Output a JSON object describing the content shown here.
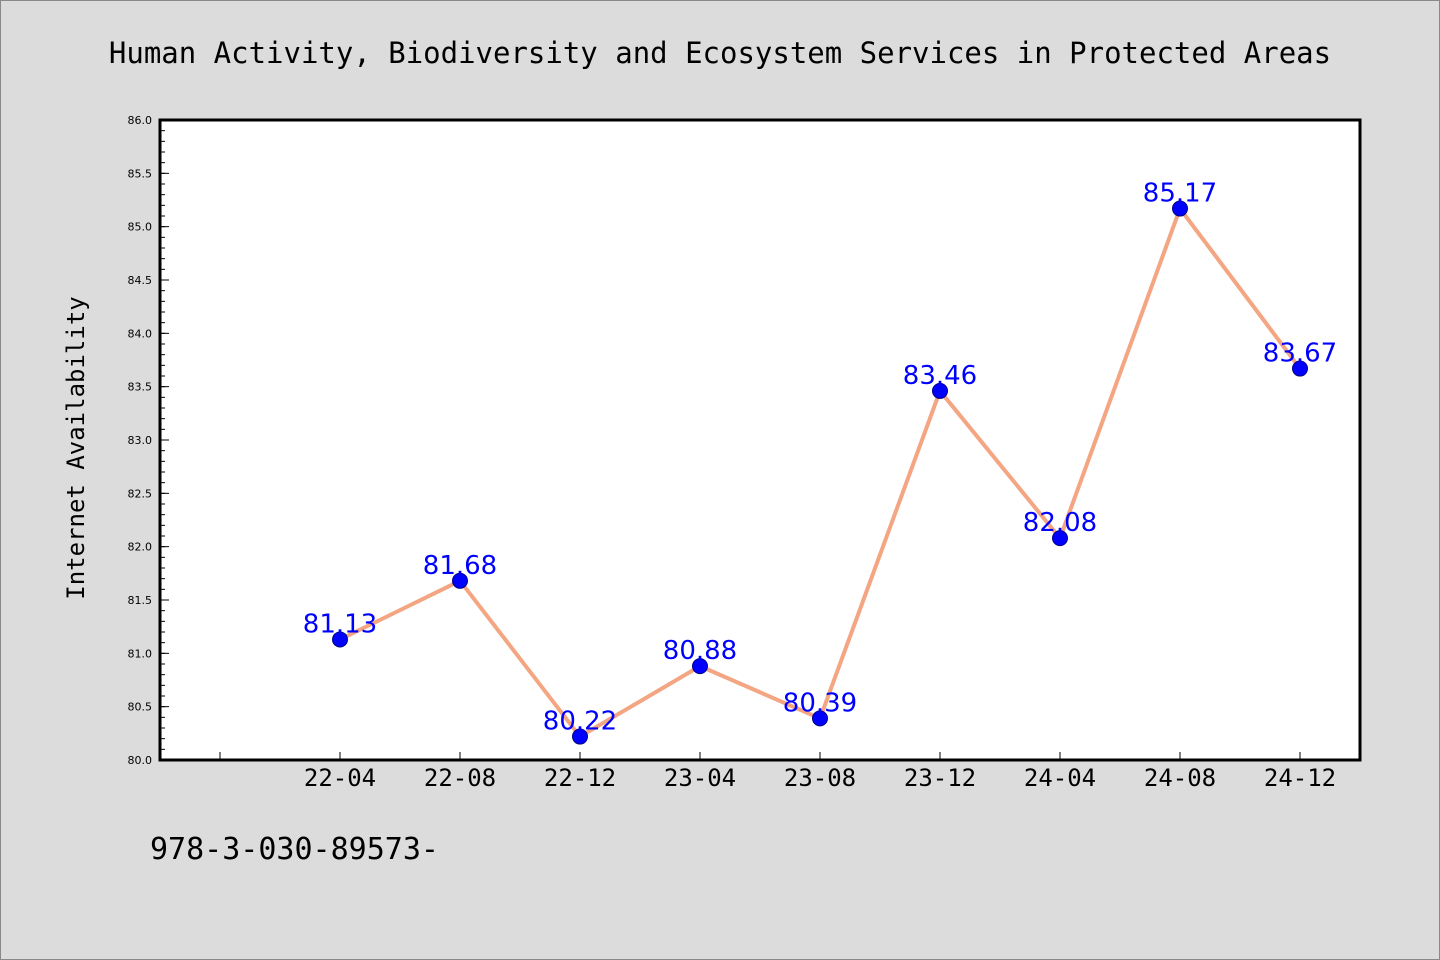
{
  "chart_data": {
    "type": "line",
    "title": "Human Activity, Biodiversity and Ecosystem Services in Protected Areas",
    "xlabel": "",
    "ylabel": "Internet Availability",
    "categories": [
      "22-04",
      "22-08",
      "22-12",
      "23-04",
      "23-08",
      "23-12",
      "24-04",
      "24-08",
      "24-12"
    ],
    "series": [
      {
        "values": [
          81.13,
          81.68,
          80.22,
          80.88,
          80.39,
          83.46,
          82.08,
          85.17,
          83.67
        ],
        "data_labels": [
          "81.13",
          "81.68",
          "80.22",
          "80.88",
          "80.39",
          "83.46",
          "82.08",
          "85.17",
          "83.67"
        ]
      }
    ],
    "ylim": [
      80.0,
      86.0
    ],
    "yticks": [
      "80.0",
      "80.5",
      "81.0",
      "81.5",
      "82.0",
      "82.5",
      "83.0",
      "83.5",
      "84.0",
      "84.5",
      "85.0",
      "85.5",
      "86.0"
    ],
    "grid": false,
    "colors": {
      "line": "#f4a582",
      "marker": "#0000ff",
      "label": "#0000ff",
      "background": "#dcdcdc",
      "plot_background": "#ffffff"
    }
  },
  "footer": {
    "text": "978-3-030-89573-"
  }
}
